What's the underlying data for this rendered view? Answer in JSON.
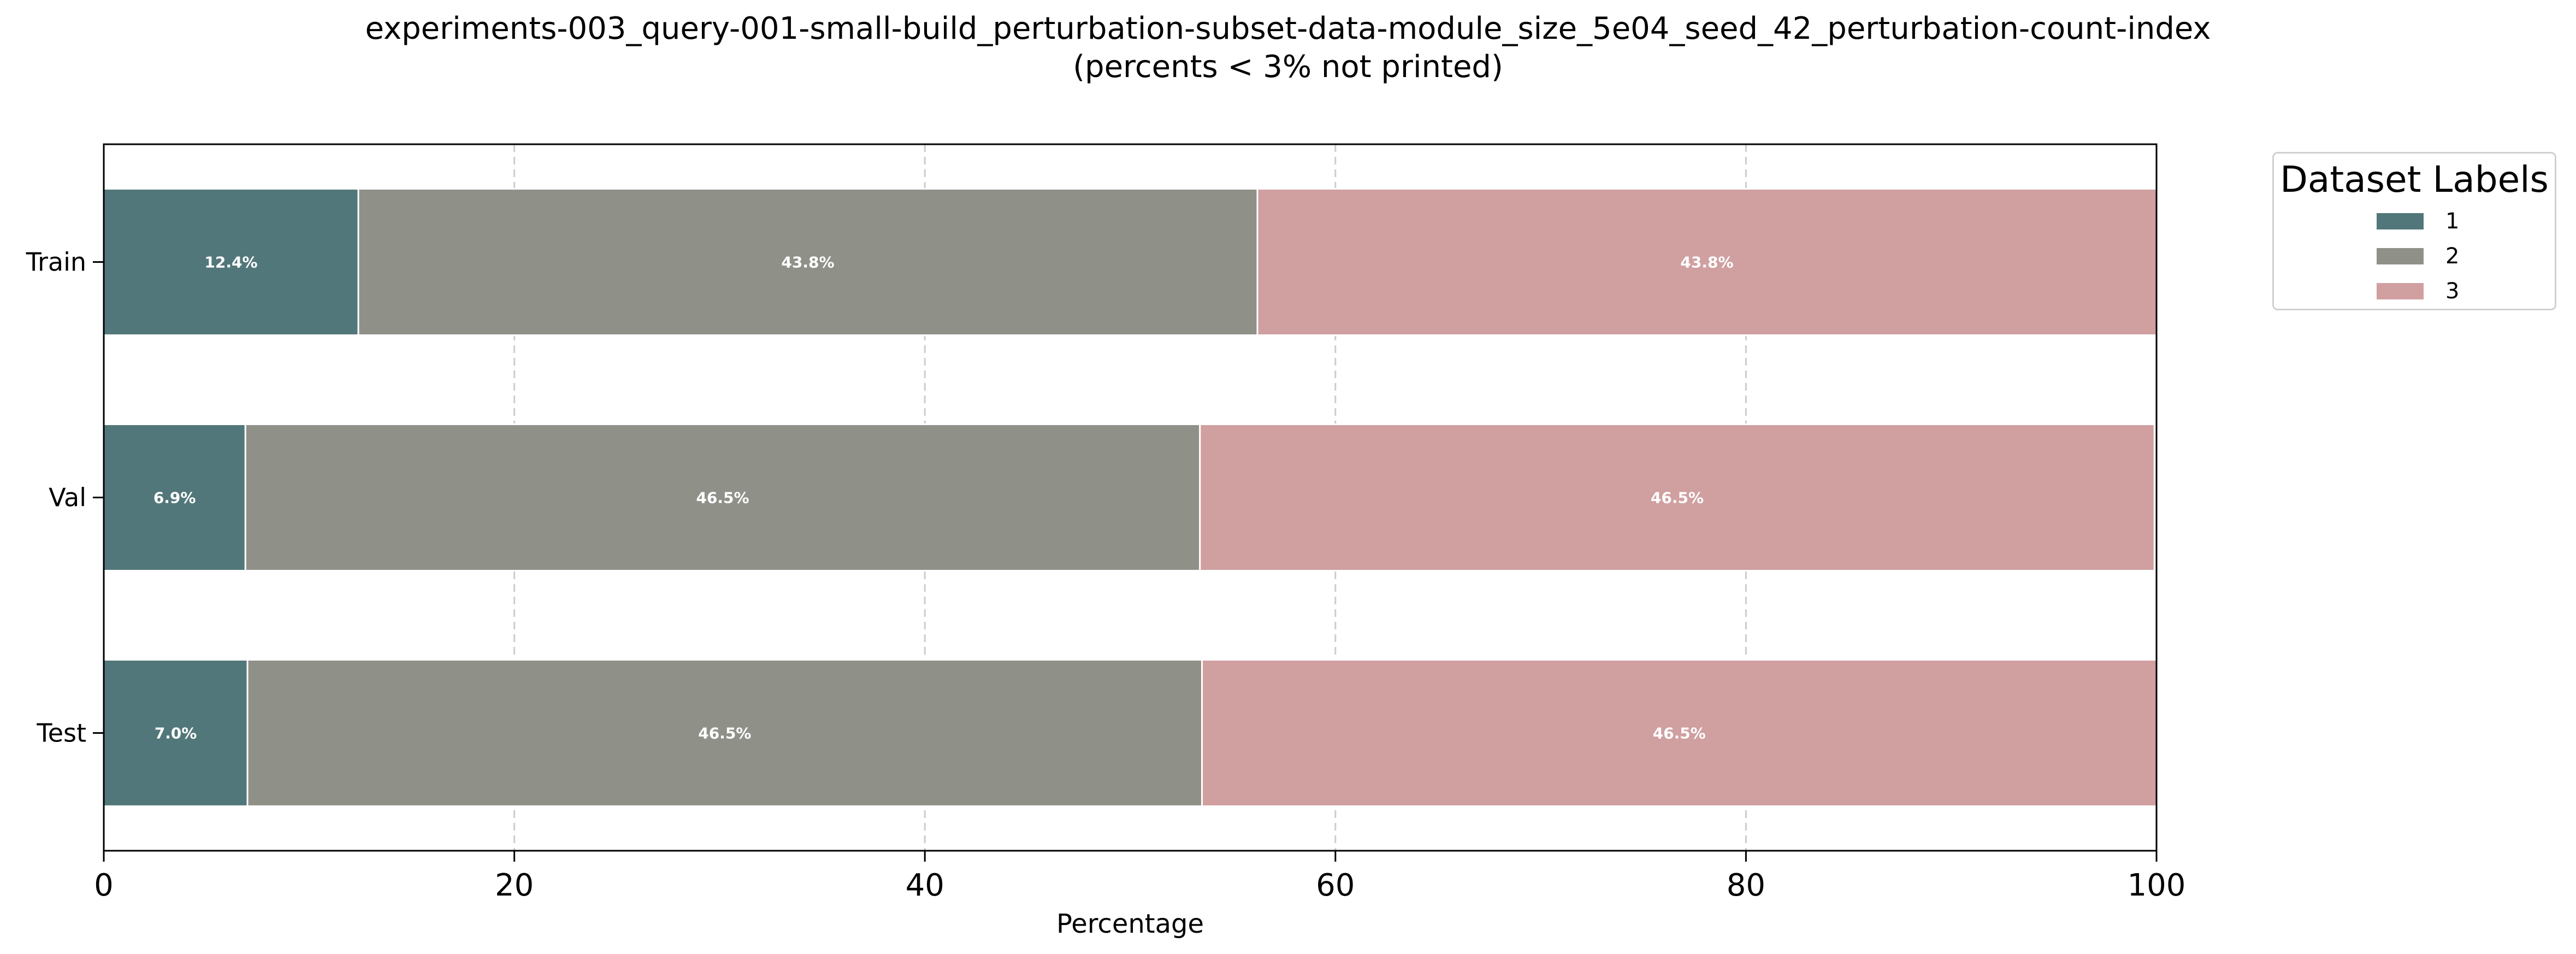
{
  "chart_data": {
    "type": "bar",
    "orientation": "horizontal",
    "stacked": true,
    "title": "experiments-003_query-001-small-build_perturbation-subset-data-module_size_5e04_seed_42_perturbation-count-index\n(percents < 3% not printed)",
    "xlabel": "Percentage",
    "ylabel": "",
    "xlim": [
      0,
      100
    ],
    "xticks": [
      "0",
      "20",
      "40",
      "60",
      "80",
      "100"
    ],
    "grid": "x-dashed",
    "categories": [
      "Train",
      "Val",
      "Test"
    ],
    "series": [
      {
        "name": "1",
        "color": "#52777a",
        "values": [
          12.4,
          6.9,
          7.0
        ],
        "labels": [
          "12.4%",
          "6.9%",
          "7.0%"
        ]
      },
      {
        "name": "2",
        "color": "#8f9189",
        "values": [
          43.8,
          46.5,
          46.5
        ],
        "labels": [
          "43.8%",
          "46.5%",
          "46.5%"
        ]
      },
      {
        "name": "3",
        "color": "#d09fa0",
        "values": [
          43.8,
          46.5,
          46.5
        ],
        "labels": [
          "43.8%",
          "46.5%",
          "46.5%"
        ]
      }
    ],
    "legend": {
      "title": "Dataset Labels",
      "placement": "outside-top-right"
    }
  }
}
